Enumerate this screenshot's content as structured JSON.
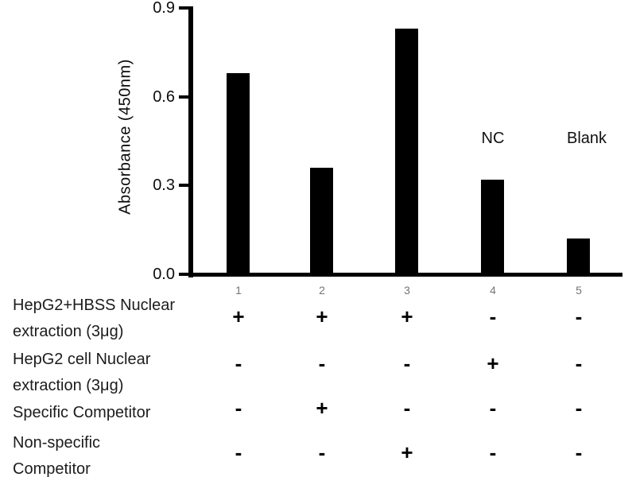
{
  "chart_data": {
    "type": "bar",
    "title": "",
    "ylabel": "Absorbance (450nm)",
    "xlabel": "",
    "ylim": [
      0,
      0.9
    ],
    "yticks": [
      "0.0",
      "0.3",
      "0.6",
      "0.9"
    ],
    "categories": [
      "1",
      "2",
      "3",
      "4",
      "5"
    ],
    "values": [
      0.68,
      0.36,
      0.83,
      0.32,
      0.12
    ],
    "bar_color": "#000000",
    "grid": false,
    "legend": null,
    "annotations": [
      {
        "text": "NC",
        "lane": "4"
      },
      {
        "text": "Blank",
        "lane": "5"
      }
    ]
  },
  "condition_table": {
    "rows": [
      {
        "label_lines": [
          "HepG2+HBSS Nuclear",
          "extraction (3μg)"
        ],
        "values": [
          "+",
          "+",
          "+",
          "-",
          "-"
        ]
      },
      {
        "label_lines": [
          "HepG2 cell Nuclear",
          "extraction (3μg)"
        ],
        "values": [
          "-",
          "-",
          "-",
          "+",
          "-"
        ]
      },
      {
        "label_lines": [
          "Specific Competitor"
        ],
        "values": [
          "-",
          "+",
          "-",
          "-",
          "-"
        ]
      },
      {
        "label_lines": [
          "Non-specific",
          "Competitor"
        ],
        "values": [
          "-",
          "-",
          "+",
          "-",
          "-"
        ]
      }
    ]
  },
  "colors": {
    "bar": "#000000",
    "axis": "#000000",
    "lane_number": "#757575",
    "label_text": "#1c1c1c",
    "background": "#ffffff"
  }
}
